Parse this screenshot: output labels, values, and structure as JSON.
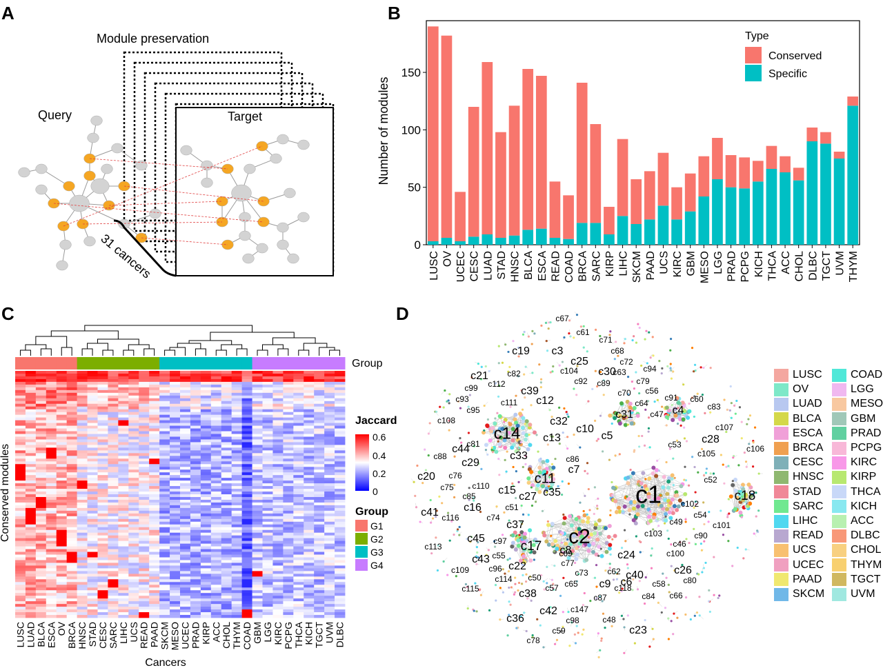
{
  "panel_labels": [
    "A",
    "B",
    "C",
    "D"
  ],
  "panel_a": {
    "title": "Module preservation",
    "query_label": "Query",
    "target_label": "Target",
    "cancers_label": "31 cancers",
    "colors": {
      "node_grey": "#d3d3d3",
      "node_orange": "#f5a623",
      "edge_red": "#e04040"
    }
  },
  "chart_data": [
    {
      "type": "bar",
      "stacked": true,
      "title": "",
      "xlabel": "",
      "ylabel": "Number of modules",
      "ylim": [
        0,
        195
      ],
      "yticks": [
        0,
        50,
        100,
        150
      ],
      "legend": {
        "title": "Type",
        "position": "top-right"
      },
      "categories": [
        "LUSC",
        "OV",
        "UCEC",
        "CESC",
        "LUAD",
        "STAD",
        "HNSC",
        "BLCA",
        "ESCA",
        "READ",
        "COAD",
        "BRCA",
        "SARC",
        "KIRP",
        "LIHC",
        "SKCM",
        "PAAD",
        "UCS",
        "KIRC",
        "GBM",
        "MESO",
        "LGG",
        "PRAD",
        "PCPG",
        "KICH",
        "THCA",
        "ACC",
        "CHOL",
        "DLBC",
        "TGCT",
        "UVM",
        "THYM"
      ],
      "series": [
        {
          "name": "Conserved",
          "color": "#f8766d",
          "values": [
            187,
            176,
            43,
            113,
            150,
            92,
            113,
            140,
            133,
            49,
            38,
            122,
            86,
            24,
            67,
            39,
            42,
            46,
            28,
            33,
            35,
            36,
            28,
            27,
            18,
            20,
            14,
            11,
            12,
            10,
            6,
            8
          ]
        },
        {
          "name": "Specific",
          "color": "#00bfc4",
          "values": [
            3,
            6,
            3,
            7,
            9,
            6,
            8,
            13,
            14,
            6,
            5,
            19,
            19,
            9,
            25,
            18,
            22,
            34,
            22,
            29,
            42,
            57,
            50,
            49,
            55,
            66,
            63,
            56,
            90,
            88,
            75,
            121
          ]
        }
      ]
    },
    {
      "type": "heatmap",
      "ylabel": "Conserved modules",
      "xlabel": "Cancers",
      "colorbar": {
        "title": "Jaccard",
        "ticks": [
          "0.6",
          "0.4",
          "0.2",
          "0"
        ],
        "range": [
          0,
          0.6
        ],
        "colors": [
          "#0000ff",
          "#ffffff",
          "#ff0000"
        ]
      },
      "group_label": "Group",
      "group_legend": {
        "title": "Group",
        "items": [
          {
            "name": "G1",
            "color": "#f8766d"
          },
          {
            "name": "G2",
            "color": "#7cae00"
          },
          {
            "name": "G3",
            "color": "#00bfc4"
          },
          {
            "name": "G4",
            "color": "#c77cff"
          }
        ]
      },
      "columns": [
        "LUSC",
        "LUAD",
        "BLCA",
        "ESCA",
        "OV",
        "BRCA",
        "HNSC",
        "STAD",
        "CESC",
        "SARC",
        "LIHC",
        "UCS",
        "READ",
        "PAAD",
        "SKCM",
        "MESO",
        "UCEC",
        "PRAD",
        "KIRP",
        "ACC",
        "CHOL",
        "THYM",
        "COAD",
        "GBM",
        "LGG",
        "KIRC",
        "PCPG",
        "THCA",
        "KICH",
        "TGCT",
        "UVM",
        "DLBC"
      ],
      "column_groups": [
        "G1",
        "G1",
        "G1",
        "G1",
        "G1",
        "G1",
        "G2",
        "G2",
        "G2",
        "G2",
        "G2",
        "G2",
        "G2",
        "G2",
        "G3",
        "G3",
        "G3",
        "G3",
        "G3",
        "G3",
        "G3",
        "G3",
        "G3",
        "G4",
        "G4",
        "G4",
        "G4",
        "G4",
        "G4",
        "G4",
        "G4",
        "G4"
      ]
    }
  ],
  "panel_d": {
    "type": "network",
    "cluster_labels": [
      "c1",
      "c2",
      "c3",
      "c4",
      "c5",
      "c6",
      "c7",
      "c8",
      "c9",
      "c10",
      "c11",
      "c12",
      "c13",
      "c14",
      "c15",
      "c16",
      "c17",
      "c18",
      "c19",
      "c20",
      "c21",
      "c22",
      "c23",
      "c24",
      "c25",
      "c26",
      "c27",
      "c28",
      "c29",
      "c30",
      "c31",
      "c32",
      "c33",
      "c35",
      "c36",
      "c37",
      "c38",
      "c39",
      "c40",
      "c41",
      "c42",
      "c43",
      "c44",
      "c45",
      "c46",
      "c47",
      "c48",
      "c49",
      "c50",
      "c51",
      "c52",
      "c53",
      "c54",
      "c55",
      "c56",
      "c57",
      "c58",
      "c59",
      "c60",
      "c61",
      "c62",
      "c63",
      "c64",
      "c65",
      "c66",
      "c67",
      "c68",
      "c69",
      "c70",
      "c71",
      "c72",
      "c73",
      "c74",
      "c75",
      "c76",
      "c77",
      "c78",
      "c79",
      "c80",
      "c81",
      "c82",
      "c83",
      "c84",
      "c85",
      "c86",
      "c87",
      "c88",
      "c89",
      "c90",
      "c91",
      "c92",
      "c93",
      "c94",
      "c95",
      "c96",
      "c97",
      "c98",
      "c99",
      "c100",
      "c101",
      "c102",
      "c103",
      "c104",
      "c105",
      "c106",
      "c107",
      "c108",
      "c109",
      "c110",
      "c111",
      "c112",
      "c113",
      "c114",
      "c115",
      "c116",
      "c118",
      "c147"
    ],
    "legend": [
      {
        "name": "LUSC",
        "color": "#f4a7a0"
      },
      {
        "name": "OV",
        "color": "#7ee8c8"
      },
      {
        "name": "LUAD",
        "color": "#b8c8f0"
      },
      {
        "name": "BLCA",
        "color": "#d4d84a"
      },
      {
        "name": "ESCA",
        "color": "#f0a0d8"
      },
      {
        "name": "BRCA",
        "color": "#f0a050"
      },
      {
        "name": "CESC",
        "color": "#7fb0b8"
      },
      {
        "name": "HNSC",
        "color": "#8fb870"
      },
      {
        "name": "STAD",
        "color": "#f08898"
      },
      {
        "name": "SARC",
        "color": "#70e890"
      },
      {
        "name": "LIHC",
        "color": "#50d8f0"
      },
      {
        "name": "READ",
        "color": "#b8a8d0"
      },
      {
        "name": "UCS",
        "color": "#f8c070"
      },
      {
        "name": "UCEC",
        "color": "#f0a0c0"
      },
      {
        "name": "PAAD",
        "color": "#f0e870"
      },
      {
        "name": "SKCM",
        "color": "#70b8e8"
      },
      {
        "name": "COAD",
        "color": "#50e8d8"
      },
      {
        "name": "LGG",
        "color": "#f0b8f0"
      },
      {
        "name": "MESO",
        "color": "#f8c8a0"
      },
      {
        "name": "GBM",
        "color": "#a0c8b8"
      },
      {
        "name": "PRAD",
        "color": "#60d0a0"
      },
      {
        "name": "PCPG",
        "color": "#f8b8d8"
      },
      {
        "name": "KIRC",
        "color": "#f898e8"
      },
      {
        "name": "KIRP",
        "color": "#b8e870"
      },
      {
        "name": "THCA",
        "color": "#c8d8f8"
      },
      {
        "name": "KICH",
        "color": "#88e8f0"
      },
      {
        "name": "ACC",
        "color": "#b8f0b0"
      },
      {
        "name": "DLBC",
        "color": "#f89878"
      },
      {
        "name": "CHOL",
        "color": "#f8d080"
      },
      {
        "name": "THYM",
        "color": "#f8d070"
      },
      {
        "name": "TGCT",
        "color": "#d0b860"
      },
      {
        "name": "UVM",
        "color": "#a0e8e0"
      }
    ]
  }
}
